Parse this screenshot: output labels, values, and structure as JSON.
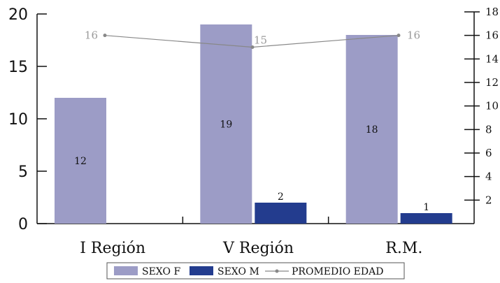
{
  "chart_data": {
    "type": "bar",
    "categories": [
      "I Región",
      "V Región",
      "R.M."
    ],
    "series": [
      {
        "name": "SEXO F",
        "values": [
          12,
          19,
          18
        ],
        "color": "#9c9cc6",
        "axis": "left"
      },
      {
        "name": "SEXO M",
        "values": [
          0,
          2,
          1
        ],
        "color": "#233c8e",
        "axis": "left"
      },
      {
        "name": "PROMEDIO EDAD",
        "type": "line",
        "values": [
          16,
          15,
          16
        ],
        "color": "#888888",
        "axis": "right"
      }
    ],
    "data_labels": {
      "SEXO F": [
        "12",
        "19",
        "18"
      ],
      "SEXO M": [
        "",
        "2",
        "1"
      ],
      "PROMEDIO EDAD": [
        "16",
        "15",
        "16"
      ]
    },
    "y_left": {
      "ylim": [
        0,
        20
      ],
      "ticks": [
        "0",
        "5",
        "10",
        "15",
        "20"
      ]
    },
    "y_right": {
      "ylim": [
        0,
        18
      ],
      "ticks": [
        "2",
        "4",
        "6",
        "8",
        "10",
        "12",
        "14",
        "16",
        "18"
      ]
    },
    "legend": {
      "position": "bottom",
      "entries": [
        "SEXO F",
        "SEXO M",
        "PROMEDIO EDAD"
      ]
    },
    "grid": false,
    "title": "",
    "xlabel": "",
    "ylabel": ""
  }
}
